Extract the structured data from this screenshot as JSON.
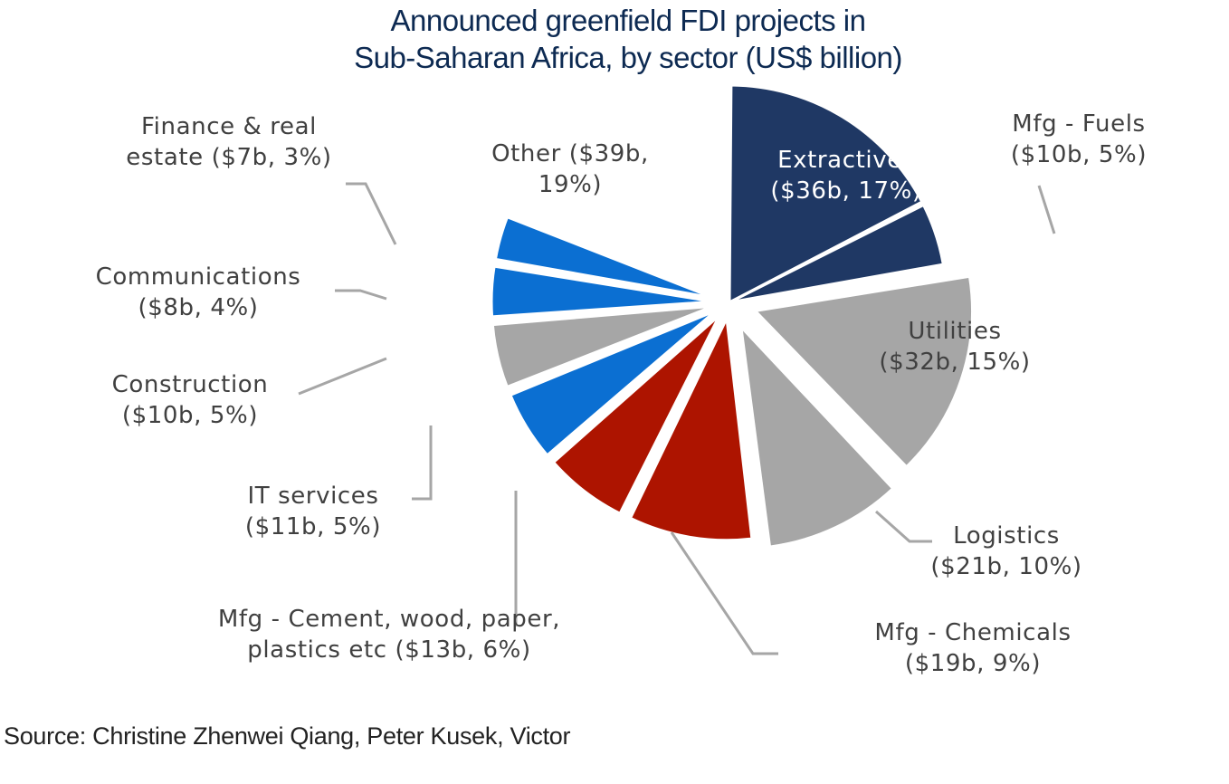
{
  "title": {
    "line1": "Announced greenfield FDI projects in",
    "line2": "Sub-Saharan Africa, by sector (US$ billion)"
  },
  "source": "Source: Christine Zhenwei Qiang, Peter Kusek, Victor",
  "colors": {
    "navy": "#1f3864",
    "grey": "#a6a6a6",
    "red": "#ad1400",
    "blue": "#0b6fd2",
    "leader": "#a6a6a6",
    "text": "#404040"
  },
  "chart_data": {
    "type": "pie",
    "title": "Announced greenfield FDI projects in Sub-Saharan Africa, by sector (US$ billion)",
    "unit": "US$ billion",
    "slices": [
      {
        "name": "Extractives",
        "value": 36,
        "percent": 17,
        "color_key": "navy",
        "label_lines": [
          "Extractives",
          "($36b, 17%)"
        ]
      },
      {
        "name": "Mfg - Fuels",
        "value": 10,
        "percent": 5,
        "color_key": "navy",
        "label_lines": [
          "Mfg - Fuels",
          "($10b, 5%)"
        ]
      },
      {
        "name": "Utilities",
        "value": 32,
        "percent": 15,
        "color_key": "grey",
        "label_lines": [
          "Utilities",
          "($32b, 15%)"
        ]
      },
      {
        "name": "Logistics",
        "value": 21,
        "percent": 10,
        "color_key": "grey",
        "label_lines": [
          "Logistics",
          "($21b, 10%)"
        ]
      },
      {
        "name": "Mfg - Chemicals",
        "value": 19,
        "percent": 9,
        "color_key": "red",
        "label_lines": [
          "Mfg - Chemicals",
          "($19b, 9%)"
        ]
      },
      {
        "name": "Mfg - Cement, wood, paper, plastics etc",
        "value": 13,
        "percent": 6,
        "color_key": "red",
        "label_lines": [
          "Mfg - Cement, wood, paper,",
          "plastics etc ($13b, 6%)"
        ]
      },
      {
        "name": "IT services",
        "value": 11,
        "percent": 5,
        "color_key": "blue",
        "label_lines": [
          "IT services",
          "($11b, 5%)"
        ]
      },
      {
        "name": "Construction",
        "value": 10,
        "percent": 5,
        "color_key": "grey",
        "label_lines": [
          "Construction",
          "($10b, 5%)"
        ]
      },
      {
        "name": "Communications",
        "value": 8,
        "percent": 4,
        "color_key": "blue",
        "label_lines": [
          "Communications",
          "($8b, 4%)"
        ]
      },
      {
        "name": "Finance & real estate",
        "value": 7,
        "percent": 3,
        "color_key": "blue",
        "label_lines": [
          "Finance & real",
          "estate ($7b, 3%)"
        ]
      },
      {
        "name": "Other",
        "value": 39,
        "percent": 19,
        "color_key": "none",
        "label_lines": [
          "Other ($39b,",
          "19%)"
        ]
      }
    ]
  }
}
